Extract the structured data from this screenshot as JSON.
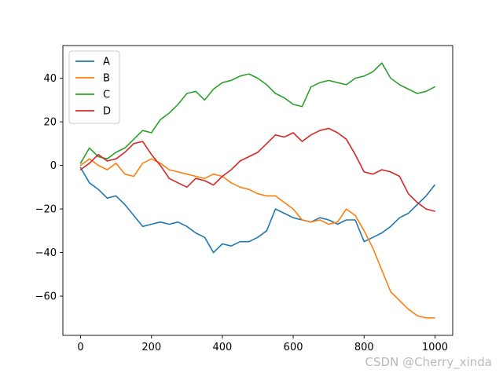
{
  "chart_data": {
    "type": "line",
    "title": "",
    "xlabel": "",
    "ylabel": "",
    "xlim": [
      -50,
      1050
    ],
    "ylim": [
      -78,
      55
    ],
    "xticks": [
      0,
      200,
      400,
      600,
      800,
      1000
    ],
    "xtick_labels": [
      "0",
      "200",
      "400",
      "600",
      "800",
      "1000"
    ],
    "yticks": [
      -60,
      -40,
      -20,
      0,
      20,
      40
    ],
    "ytick_labels": [
      "−60",
      "−40",
      "−20",
      "0",
      "20",
      "40"
    ],
    "grid": false,
    "legend_position": "top-left",
    "x": [
      0,
      25,
      50,
      75,
      100,
      125,
      150,
      175,
      200,
      225,
      250,
      275,
      300,
      325,
      350,
      375,
      400,
      425,
      450,
      475,
      500,
      525,
      550,
      575,
      600,
      625,
      650,
      675,
      700,
      725,
      750,
      775,
      800,
      825,
      850,
      875,
      900,
      925,
      950,
      975,
      999
    ],
    "series": [
      {
        "name": "A",
        "color": "#1f77b4",
        "values": [
          -1,
          -8,
          -11,
          -15,
          -14,
          -18,
          -23,
          -28,
          -27,
          -26,
          -27,
          -26,
          -28,
          -31,
          -33,
          -40,
          -36,
          -37,
          -35,
          -35,
          -33,
          -30,
          -20,
          -22,
          -24,
          -25,
          -26,
          -24,
          -25,
          -27,
          -25,
          -25,
          -35,
          -33,
          -31,
          -28,
          -24,
          -22,
          -18,
          -14,
          -9
        ]
      },
      {
        "name": "B",
        "color": "#ff7f0e",
        "values": [
          0,
          3,
          0,
          -2,
          1,
          -4,
          -5,
          1,
          3,
          1,
          -2,
          -3,
          -4,
          -5,
          -6,
          -4,
          -5,
          -8,
          -10,
          -11,
          -13,
          -14,
          -14,
          -17,
          -20,
          -25,
          -26,
          -25,
          -27,
          -26,
          -20,
          -23,
          -30,
          -38,
          -48,
          -58,
          -62,
          -66,
          -69,
          -70,
          -70
        ]
      },
      {
        "name": "C",
        "color": "#2ca02c",
        "values": [
          1,
          8,
          4,
          3,
          6,
          8,
          12,
          16,
          15,
          21,
          24,
          28,
          33,
          34,
          30,
          35,
          38,
          39,
          41,
          42,
          40,
          37,
          33,
          31,
          28,
          27,
          36,
          38,
          39,
          38,
          37,
          40,
          41,
          43,
          47,
          40,
          37,
          35,
          33,
          34,
          36
        ]
      },
      {
        "name": "D",
        "color": "#d62728",
        "values": [
          -2,
          1,
          5,
          2,
          3,
          6,
          10,
          11,
          5,
          0,
          -6,
          -8,
          -10,
          -6,
          -7,
          -9,
          -5,
          -2,
          2,
          4,
          6,
          10,
          14,
          13,
          15,
          11,
          14,
          16,
          17,
          15,
          12,
          5,
          -3,
          -4,
          -2,
          -3,
          -5,
          -13,
          -17,
          -20,
          -21
        ]
      }
    ]
  },
  "watermark": "CSDN @Cherry_xinda"
}
